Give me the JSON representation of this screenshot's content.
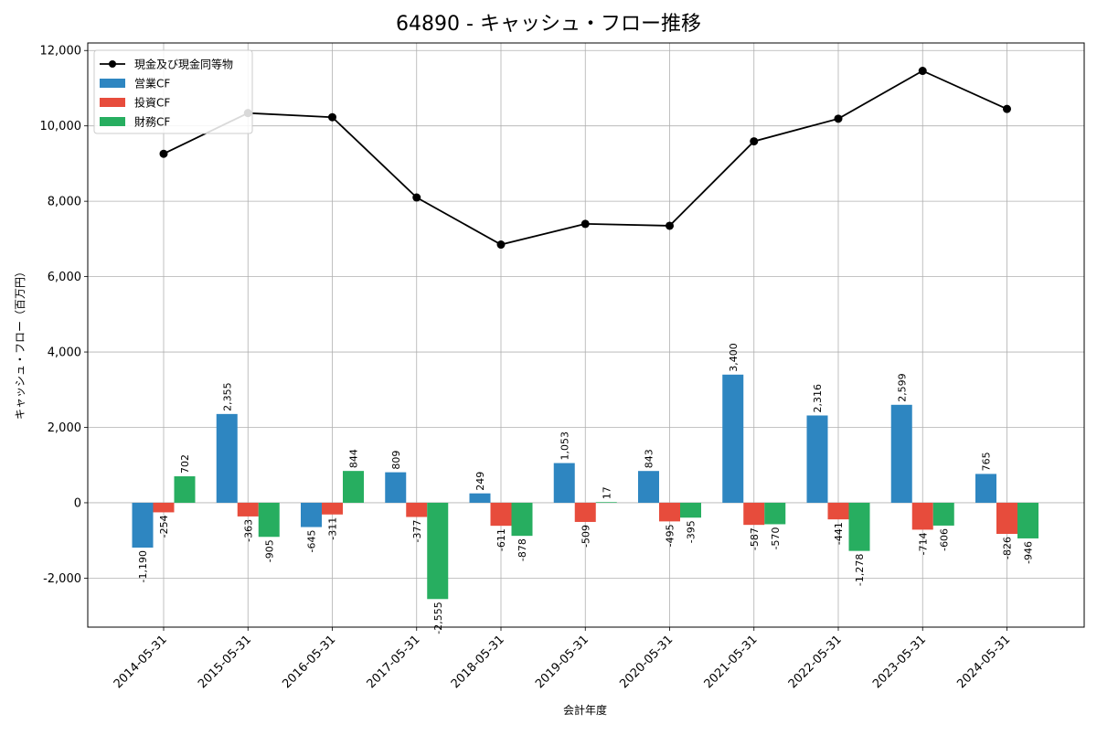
{
  "chart_data": {
    "type": "bar",
    "title": "64890 - キャッシュ・フロー推移",
    "xlabel": "会計年度",
    "ylabel": "キャッシュ・フロー（百万円）",
    "ylim": [
      -3300,
      12200
    ],
    "yticks": [
      -2000,
      0,
      2000,
      4000,
      6000,
      8000,
      10000,
      12000
    ],
    "ytick_labels": [
      "-2,000",
      "0",
      "2,000",
      "4,000",
      "6,000",
      "8,000",
      "10,000",
      "12,000"
    ],
    "grid": true,
    "legend_position": "top-left",
    "categories": [
      "2014-05-31",
      "2015-05-31",
      "2016-05-31",
      "2017-05-31",
      "2018-05-31",
      "2019-05-31",
      "2020-05-31",
      "2021-05-31",
      "2022-05-31",
      "2023-05-31",
      "2024-05-31"
    ],
    "series": [
      {
        "name": "営業CF",
        "kind": "bar",
        "color": "#2e86c1",
        "values": [
          -1190,
          2355,
          -645,
          809,
          249,
          1053,
          843,
          3400,
          2316,
          2599,
          765
        ],
        "labels": [
          "-1,190",
          "2,355",
          "-645",
          "809",
          "249",
          "1,053",
          "843",
          "3,400",
          "2,316",
          "2,599",
          "765"
        ]
      },
      {
        "name": "投資CF",
        "kind": "bar",
        "color": "#e74c3c",
        "values": [
          -254,
          -363,
          -311,
          -377,
          -611,
          -509,
          -495,
          -587,
          -441,
          -714,
          -826
        ],
        "labels": [
          "-254",
          "-363",
          "-311",
          "-377",
          "-611",
          "-509",
          "-495",
          "-587",
          "-441",
          "-714",
          "-826"
        ]
      },
      {
        "name": "財務CF",
        "kind": "bar",
        "color": "#27ae60",
        "values": [
          702,
          -905,
          844,
          -2555,
          -878,
          17,
          -395,
          -570,
          -1278,
          -606,
          -946
        ],
        "labels": [
          "702",
          "-905",
          "844",
          "-2,555",
          "-878",
          "17",
          "-395",
          "-570",
          "-1,278",
          "-606",
          "-946"
        ]
      },
      {
        "name": "現金及び現金同等物",
        "kind": "line",
        "color": "#000000",
        "values": [
          9260,
          10340,
          10230,
          8100,
          6850,
          7400,
          7350,
          9590,
          10190,
          11460,
          10450
        ]
      }
    ]
  }
}
